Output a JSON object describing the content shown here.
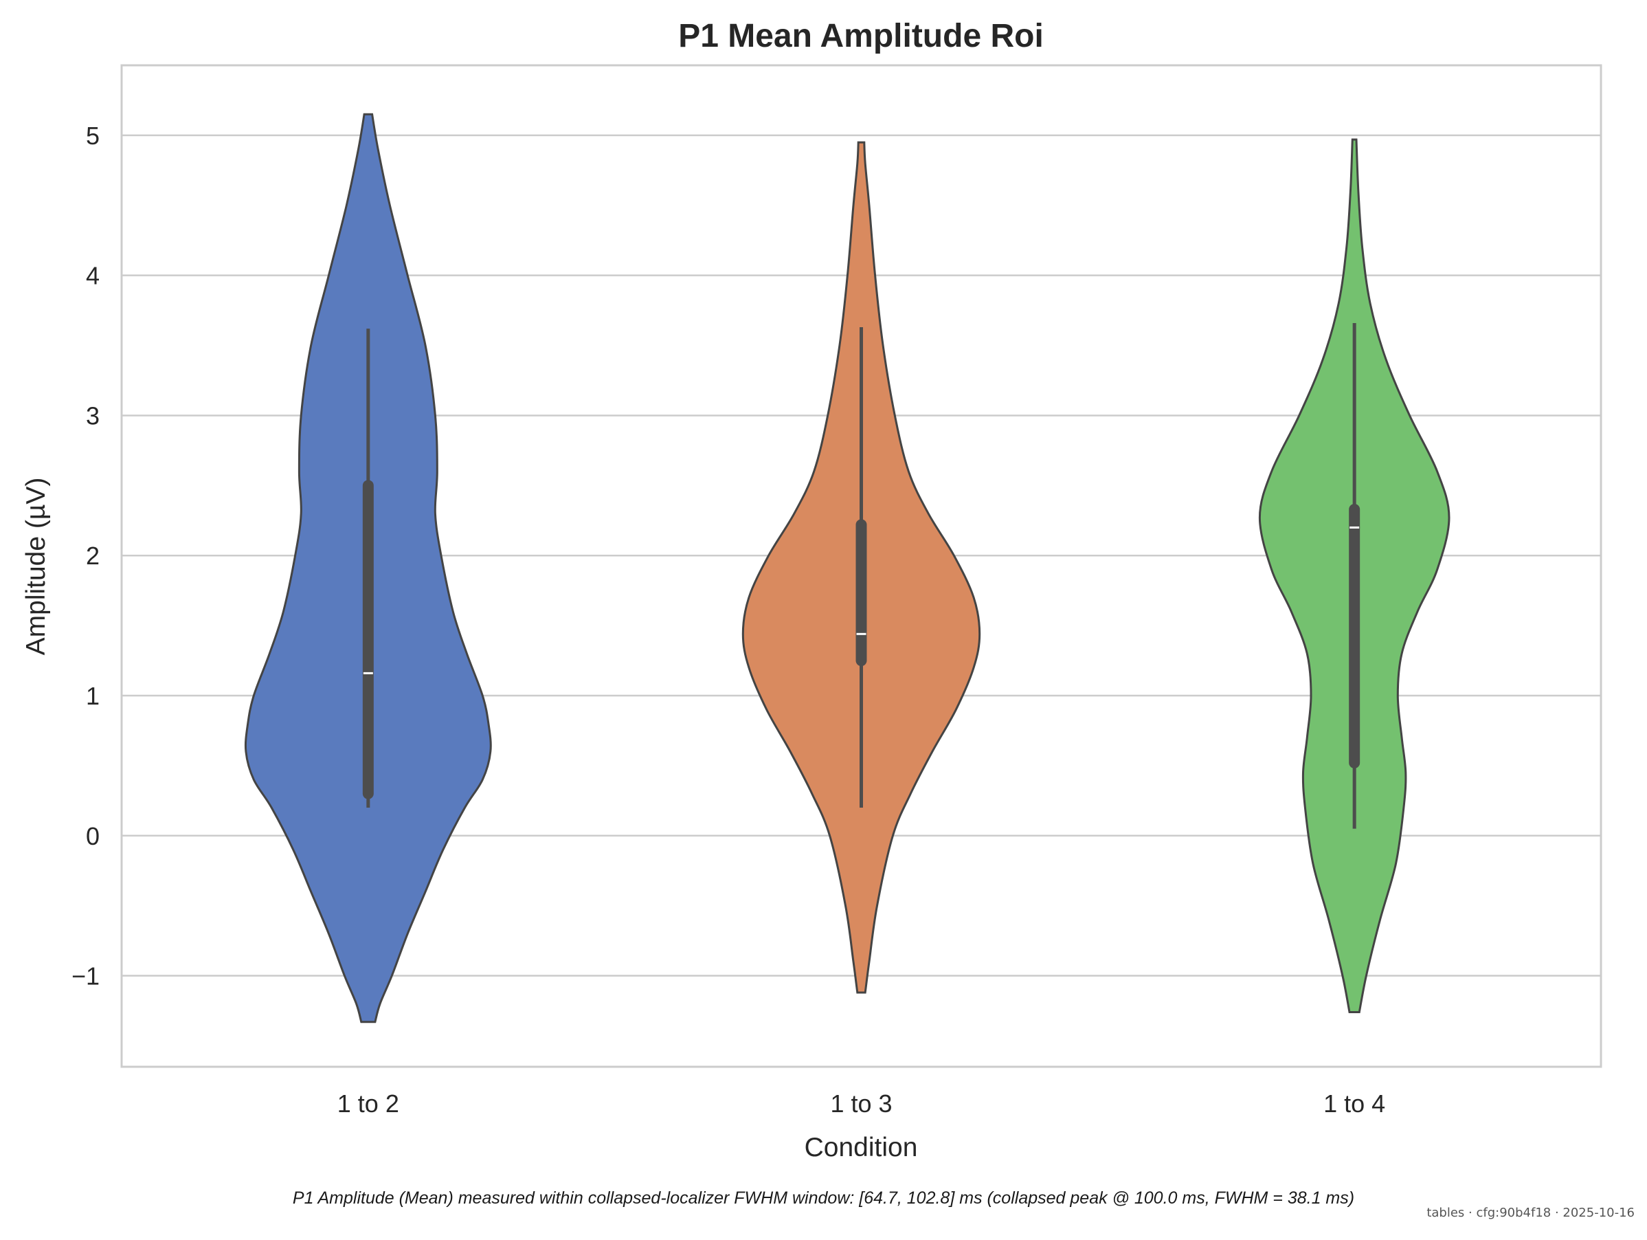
{
  "chart_data": {
    "type": "violin",
    "title": "P1 Mean Amplitude Roi",
    "xlabel": "Condition",
    "ylabel": "Amplitude (µV)",
    "categories": [
      "1 to 2",
      "1 to 3",
      "1 to 4"
    ],
    "ylim": [
      -1.65,
      5.5
    ],
    "yticks": [
      -1,
      0,
      1,
      2,
      3,
      4,
      5
    ],
    "ytick_labels": [
      "−1",
      "0",
      "1",
      "2",
      "3",
      "4",
      "5"
    ],
    "grid": "horizontal",
    "colors": [
      "#5a7bbe",
      "#d98a5f",
      "#74c16f"
    ],
    "outline_color": "#444444",
    "violins": [
      {
        "category": "1 to 2",
        "min": 0.2,
        "q1": 0.3,
        "median": 1.16,
        "q3": 2.5,
        "max": 3.62,
        "kde_min": -1.33,
        "kde_max": 5.15,
        "profile": [
          [
            -1.33,
            0.035
          ],
          [
            -1.2,
            0.06
          ],
          [
            -1.0,
            0.12
          ],
          [
            -0.7,
            0.2
          ],
          [
            -0.4,
            0.29
          ],
          [
            -0.1,
            0.38
          ],
          [
            0.2,
            0.49
          ],
          [
            0.4,
            0.58
          ],
          [
            0.6,
            0.62
          ],
          [
            0.8,
            0.61
          ],
          [
            1.0,
            0.58
          ],
          [
            1.3,
            0.5
          ],
          [
            1.6,
            0.43
          ],
          [
            2.0,
            0.37
          ],
          [
            2.3,
            0.34
          ],
          [
            2.6,
            0.35
          ],
          [
            3.0,
            0.34
          ],
          [
            3.5,
            0.29
          ],
          [
            4.0,
            0.2
          ],
          [
            4.5,
            0.11
          ],
          [
            4.9,
            0.05
          ],
          [
            5.15,
            0.02
          ]
        ]
      },
      {
        "category": "1 to 3",
        "min": 0.2,
        "q1": 1.25,
        "median": 1.44,
        "q3": 2.22,
        "max": 3.63,
        "kde_min": -1.12,
        "kde_max": 4.95,
        "profile": [
          [
            -1.12,
            0.02
          ],
          [
            -0.9,
            0.04
          ],
          [
            -0.5,
            0.08
          ],
          [
            0.0,
            0.16
          ],
          [
            0.3,
            0.25
          ],
          [
            0.6,
            0.36
          ],
          [
            0.9,
            0.48
          ],
          [
            1.2,
            0.57
          ],
          [
            1.44,
            0.6
          ],
          [
            1.7,
            0.57
          ],
          [
            2.0,
            0.47
          ],
          [
            2.3,
            0.34
          ],
          [
            2.6,
            0.24
          ],
          [
            3.0,
            0.17
          ],
          [
            3.5,
            0.11
          ],
          [
            4.0,
            0.07
          ],
          [
            4.5,
            0.04
          ],
          [
            4.8,
            0.02
          ],
          [
            4.95,
            0.015
          ]
        ]
      },
      {
        "category": "1 to 4",
        "min": 0.05,
        "q1": 0.52,
        "median": 2.2,
        "q3": 2.33,
        "max": 3.66,
        "kde_min": -1.26,
        "kde_max": 4.97,
        "profile": [
          [
            -1.26,
            0.025
          ],
          [
            -1.0,
            0.06
          ],
          [
            -0.6,
            0.13
          ],
          [
            -0.2,
            0.21
          ],
          [
            0.2,
            0.25
          ],
          [
            0.45,
            0.26
          ],
          [
            0.7,
            0.24
          ],
          [
            1.0,
            0.22
          ],
          [
            1.3,
            0.24
          ],
          [
            1.6,
            0.32
          ],
          [
            1.9,
            0.42
          ],
          [
            2.27,
            0.48
          ],
          [
            2.6,
            0.42
          ],
          [
            3.0,
            0.28
          ],
          [
            3.4,
            0.16
          ],
          [
            3.8,
            0.08
          ],
          [
            4.2,
            0.04
          ],
          [
            4.6,
            0.02
          ],
          [
            4.97,
            0.01
          ]
        ]
      }
    ]
  },
  "caption": "P1 Amplitude (Mean) measured within collapsed-localizer FWHM window: [64.7, 102.8] ms (collapsed peak @ 100.0 ms, FWHM = 38.1 ms)",
  "stamp": "tables · cfg:90b4f18 · 2025-10-16"
}
